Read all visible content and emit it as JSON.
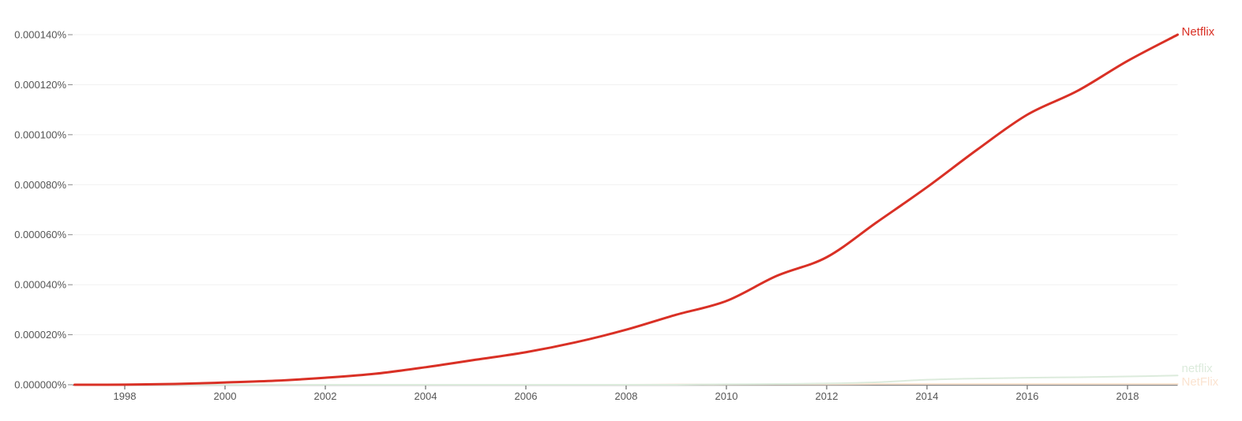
{
  "chart_data": {
    "type": "line",
    "title": "",
    "xlabel": "",
    "ylabel": "",
    "x": [
      1997,
      1998,
      1999,
      2000,
      2001,
      2002,
      2003,
      2004,
      2005,
      2006,
      2007,
      2008,
      2009,
      2010,
      2011,
      2012,
      2013,
      2014,
      2015,
      2016,
      2017,
      2018,
      2019
    ],
    "xlim": [
      1997,
      2019
    ],
    "ylim": [
      0,
      0.00014
    ],
    "y_unit": "percent",
    "x_ticks": [
      "1998",
      "2000",
      "2002",
      "2004",
      "2006",
      "2008",
      "2010",
      "2012",
      "2014",
      "2016",
      "2018"
    ],
    "y_ticks": [
      "0.000000%",
      "0.000020%",
      "0.000040%",
      "0.000060%",
      "0.000080%",
      "0.000100%",
      "0.000120%",
      "0.000140%"
    ],
    "grid": true,
    "legend": "inline-right-end",
    "series": [
      {
        "name": "Netflix",
        "color": "#d93025",
        "values": [
          0,
          5e-08,
          3e-07,
          9e-07,
          1.6e-06,
          2.8e-06,
          4.4e-06,
          7e-06,
          1e-05,
          1.3e-05,
          1.7e-05,
          2.2e-05,
          2.8e-05,
          3.35e-05,
          4.35e-05,
          5.1e-05,
          6.5e-05,
          7.9e-05,
          9.4e-05,
          0.000108,
          0.0001175,
          0.0001295,
          0.00014
        ]
      },
      {
        "name": "netflix",
        "color": "#dcebdc",
        "values": [
          0,
          0,
          0,
          0,
          0,
          0,
          0,
          0,
          0,
          0,
          0,
          0,
          0,
          2e-07,
          3e-07,
          5e-07,
          1e-06,
          2e-06,
          2.5e-06,
          2.8e-06,
          3e-06,
          3.3e-06,
          3.7e-06
        ]
      },
      {
        "name": "NetFlix",
        "color": "#fbe3d0",
        "values": [
          0,
          0,
          0,
          0,
          0,
          0,
          0,
          0,
          0,
          0,
          0,
          0,
          1e-07,
          1e-07,
          2e-07,
          2e-07,
          3e-07,
          3e-07,
          3e-07,
          3e-07,
          3e-07,
          3e-07,
          3e-07
        ]
      }
    ]
  }
}
